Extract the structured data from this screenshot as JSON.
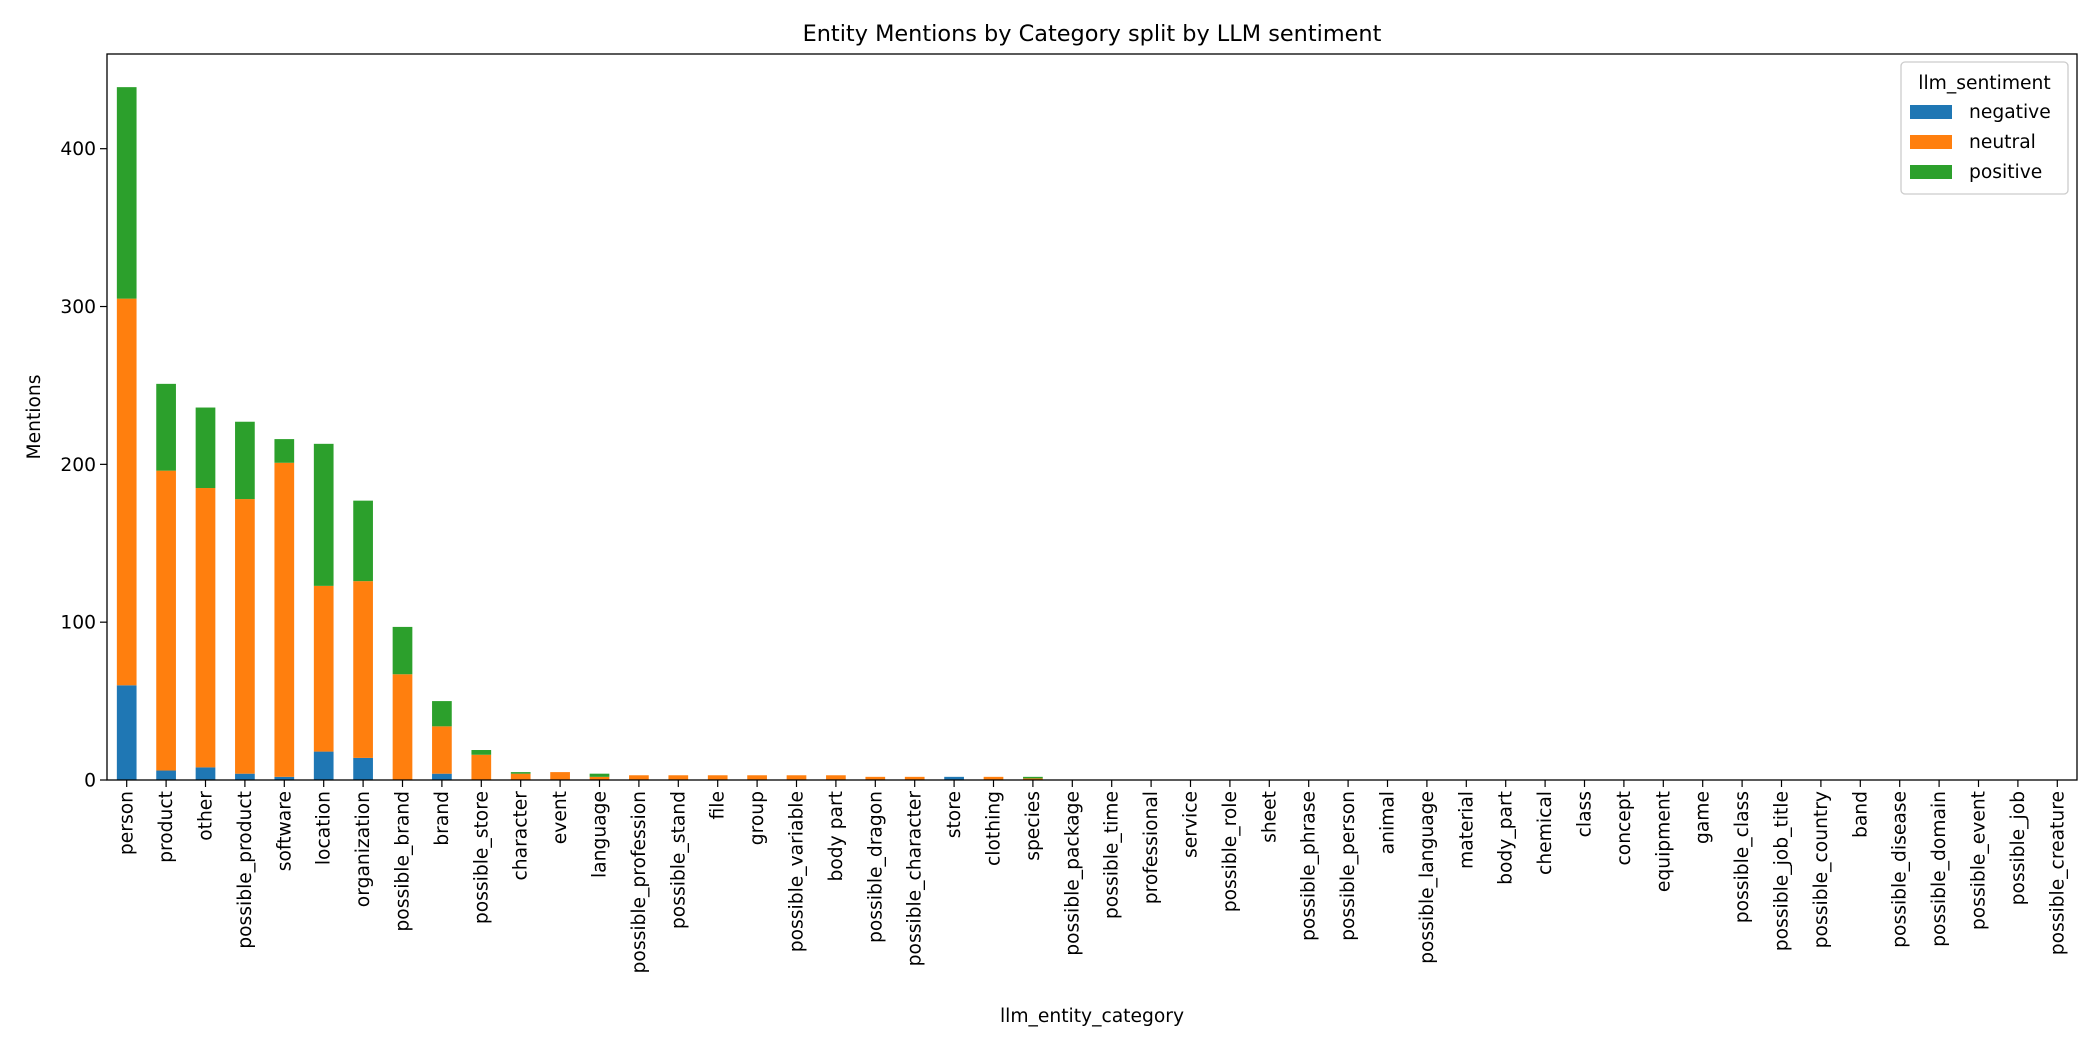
{
  "chart_data": {
    "type": "bar",
    "stacked": true,
    "title": "Entity Mentions by Category split by LLM sentiment",
    "xlabel": "llm_entity_category",
    "ylabel": "Mentions",
    "ylim": [
      0,
      460
    ],
    "yticks": [
      0,
      100,
      200,
      300,
      400
    ],
    "grid": false,
    "legend": {
      "title": "llm_sentiment",
      "placement": "top-right"
    },
    "categories": [
      "person",
      "product",
      "other",
      "possible_product",
      "software",
      "location",
      "organization",
      "possible_brand",
      "brand",
      "possible_store",
      "character",
      "event",
      "language",
      "possible_profession",
      "possible_stand",
      "file",
      "group",
      "possible_variable",
      "body part",
      "possible_dragon",
      "possible_character",
      "store",
      "clothing",
      "species",
      "possible_package",
      "possible_time",
      "professional",
      "service",
      "possible_role",
      "sheet",
      "possible_phrase",
      "possible_person",
      "animal",
      "possible_language",
      "material",
      "body_part",
      "chemical",
      "class",
      "concept",
      "equipment",
      "game",
      "possible_class",
      "possible_job_title",
      "possible_country",
      "band",
      "possible_disease",
      "possible_domain",
      "possible_event",
      "possible_job",
      "possible_creature"
    ],
    "series": [
      {
        "name": "negative",
        "color": "#1f77b4",
        "values": [
          60,
          6,
          8,
          4,
          2,
          18,
          14,
          0,
          4,
          0,
          0,
          0,
          0,
          0,
          0,
          0,
          0,
          0,
          0,
          0,
          0,
          2,
          0,
          0,
          0,
          0,
          0,
          0,
          0,
          0,
          0,
          0,
          0,
          0,
          0,
          0,
          0,
          0,
          0,
          0,
          0,
          0,
          0,
          0,
          0,
          0,
          0,
          0,
          0,
          0
        ]
      },
      {
        "name": "neutral",
        "color": "#ff7f0e",
        "values": [
          245,
          190,
          177,
          174,
          199,
          105,
          112,
          67,
          30,
          16,
          4,
          5,
          2,
          3,
          3,
          3,
          3,
          3,
          3,
          2,
          2,
          0,
          2,
          1,
          0,
          0,
          0,
          0,
          0,
          0,
          0,
          0,
          0,
          0,
          0,
          0,
          0,
          0,
          0,
          0,
          0,
          0,
          0,
          0,
          0,
          0,
          0,
          0,
          0,
          0
        ]
      },
      {
        "name": "positive",
        "color": "#2ca02c",
        "values": [
          134,
          55,
          51,
          49,
          15,
          90,
          51,
          30,
          16,
          3,
          1,
          0,
          2,
          0,
          0,
          0,
          0,
          0,
          0,
          0,
          0,
          0,
          0,
          1,
          0,
          0,
          0,
          0,
          0,
          0,
          0,
          0,
          0,
          0,
          0,
          0,
          0,
          0,
          0,
          0,
          0,
          0,
          0,
          0,
          0,
          0,
          0,
          0,
          0,
          0
        ]
      }
    ]
  }
}
